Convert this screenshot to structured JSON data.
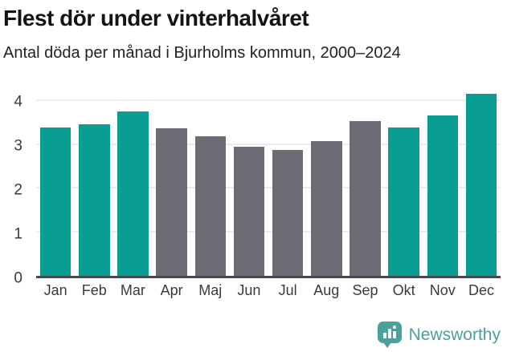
{
  "header": {
    "title": "Flest dör under vinterhalvåret",
    "subtitle": "Antal döda per månad i Bjurholms kommun, 2000–2024"
  },
  "footer": {
    "brand": "Newsworthy",
    "logo_icon": "bar-chart-speech-bubble-icon"
  },
  "colors": {
    "winter_bar_teal": "#089c92",
    "summer_bar_gray": "#6d6c74",
    "gridline": "#ececec",
    "axis_line": "#47474d",
    "axis_text": "#3a3a3a",
    "brand_teal": "#4aa19a"
  },
  "chart_data": {
    "type": "bar",
    "title": "Flest dör under vinterhalvåret",
    "subtitle": "Antal döda per månad i Bjurholms kommun, 2000–2024",
    "categories": [
      "Jan",
      "Feb",
      "Mar",
      "Apr",
      "Maj",
      "Jun",
      "Jul",
      "Aug",
      "Sep",
      "Okt",
      "Nov",
      "Dec"
    ],
    "values": [
      3.4,
      3.47,
      3.76,
      3.39,
      3.2,
      2.96,
      2.88,
      3.08,
      3.55,
      3.4,
      3.67,
      4.17
    ],
    "highlighted": [
      true,
      true,
      true,
      false,
      false,
      false,
      false,
      false,
      false,
      true,
      true,
      true
    ],
    "highlight_meaning": "winter half-year months shown in teal, summer months in gray",
    "xlabel": "",
    "ylabel": "",
    "yticks": [
      0,
      1,
      2,
      3,
      4
    ],
    "ylim": [
      0,
      4.3
    ],
    "grid": true,
    "legend": false
  }
}
